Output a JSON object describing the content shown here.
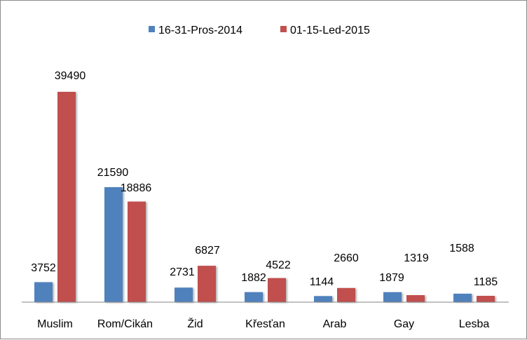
{
  "chart_data": {
    "type": "bar",
    "categories": [
      "Muslim",
      "Rom/Cikán",
      "Žid",
      "Křesťan",
      "Arab",
      "Gay",
      "Lesba"
    ],
    "series": [
      {
        "name": "16-31-Pros-2014",
        "color": "#4f81bd",
        "values": [
          3752,
          21590,
          2731,
          1882,
          1144,
          1879,
          1588
        ]
      },
      {
        "name": "01-15-Led-2015",
        "color": "#c0504d",
        "values": [
          39490,
          18886,
          6827,
          4522,
          2660,
          1319,
          1185
        ]
      }
    ],
    "ylim": [
      0,
      40000
    ],
    "grid": false,
    "legend_position": "top"
  }
}
